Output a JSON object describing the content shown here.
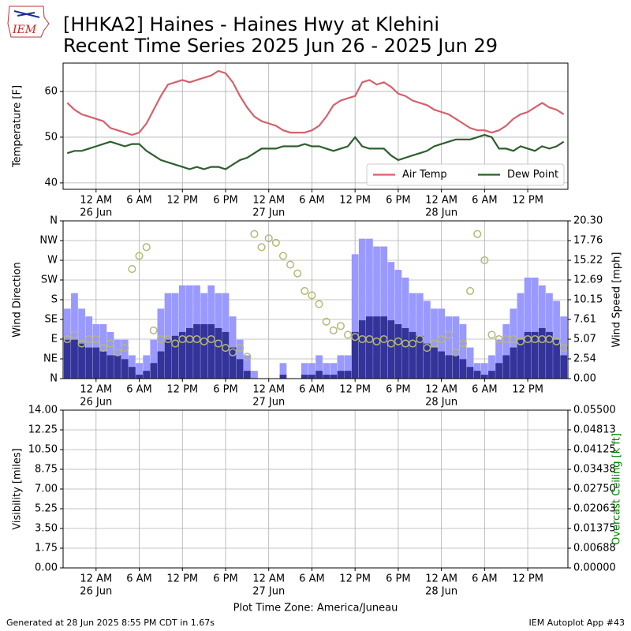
{
  "title_lines": [
    "[HHKA2] Haines - Haines Hwy at Klehini",
    "Recent Time Series 2025 Jun 26 - 2025 Jun 29"
  ],
  "logo": "IEM",
  "footer_left": "Generated at 28 Jun 2025 8:55 PM CDT in 1.67s",
  "footer_right": "IEM Autoplot App #43",
  "chart_data": [
    {
      "type": "line",
      "ylabel": "Temperature [F]",
      "legend": "lower right",
      "grid": true,
      "xlim": [
        "2025-06-25 19:25",
        "2025-06-28 17:35"
      ],
      "xticks": [
        {
          "value": "2025-06-26 00:00",
          "label": "12 AM"
        },
        {
          "value": "2025-06-26 06:00",
          "label": "6 AM"
        },
        {
          "value": "2025-06-26 12:00",
          "label": "12 PM"
        },
        {
          "value": "2025-06-26 18:00",
          "label": "6 PM"
        },
        {
          "value": "2025-06-27 00:00",
          "label": "12 AM"
        },
        {
          "value": "2025-06-27 06:00",
          "label": "6 AM"
        },
        {
          "value": "2025-06-27 12:00",
          "label": "12 PM"
        },
        {
          "value": "2025-06-27 18:00",
          "label": "6 PM"
        },
        {
          "value": "2025-06-28 00:00",
          "label": "12 AM"
        },
        {
          "value": "2025-06-28 06:00",
          "label": "6 AM"
        },
        {
          "value": "2025-06-28 12:00",
          "label": "12 PM"
        }
      ],
      "xtick_dates": [
        {
          "value": "2025-06-26 00:00",
          "label": "26 Jun"
        },
        {
          "value": "2025-06-27 00:00",
          "label": "27 Jun"
        },
        {
          "value": "2025-06-28 00:00",
          "label": "28 Jun"
        }
      ],
      "ylim": [
        38.6,
        66.2
      ],
      "yticks": [
        40,
        50,
        60
      ],
      "x": [
        "2025-06-25 20:00",
        "2025-06-25 21:00",
        "2025-06-25 22:00",
        "2025-06-25 23:00",
        "2025-06-26 00:00",
        "2025-06-26 01:00",
        "2025-06-26 02:00",
        "2025-06-26 03:00",
        "2025-06-26 04:00",
        "2025-06-26 05:00",
        "2025-06-26 06:00",
        "2025-06-26 07:00",
        "2025-06-26 08:00",
        "2025-06-26 09:00",
        "2025-06-26 10:00",
        "2025-06-26 11:00",
        "2025-06-26 12:00",
        "2025-06-26 13:00",
        "2025-06-26 14:00",
        "2025-06-26 15:00",
        "2025-06-26 16:00",
        "2025-06-26 17:00",
        "2025-06-26 18:00",
        "2025-06-26 19:00",
        "2025-06-26 20:00",
        "2025-06-26 21:00",
        "2025-06-26 22:00",
        "2025-06-26 23:00",
        "2025-06-27 00:00",
        "2025-06-27 01:00",
        "2025-06-27 02:00",
        "2025-06-27 03:00",
        "2025-06-27 04:00",
        "2025-06-27 05:00",
        "2025-06-27 06:00",
        "2025-06-27 07:00",
        "2025-06-27 08:00",
        "2025-06-27 09:00",
        "2025-06-27 10:00",
        "2025-06-27 11:00",
        "2025-06-27 12:00",
        "2025-06-27 13:00",
        "2025-06-27 14:00",
        "2025-06-27 15:00",
        "2025-06-27 16:00",
        "2025-06-27 17:00",
        "2025-06-27 18:00",
        "2025-06-27 19:00",
        "2025-06-27 20:00",
        "2025-06-27 21:00",
        "2025-06-27 22:00",
        "2025-06-27 23:00",
        "2025-06-28 00:00",
        "2025-06-28 01:00",
        "2025-06-28 02:00",
        "2025-06-28 03:00",
        "2025-06-28 04:00",
        "2025-06-28 05:00",
        "2025-06-28 06:00",
        "2025-06-28 07:00",
        "2025-06-28 08:00",
        "2025-06-28 09:00",
        "2025-06-28 10:00",
        "2025-06-28 11:00",
        "2025-06-28 12:00",
        "2025-06-28 13:00",
        "2025-06-28 14:00",
        "2025-06-28 15:00",
        "2025-06-28 16:00",
        "2025-06-28 17:00"
      ],
      "series": [
        {
          "name": "Air Temp",
          "type": "line",
          "color": "#d6606d",
          "values": [
            57.5,
            56,
            55,
            54.5,
            54,
            53.5,
            52,
            51.5,
            51,
            50.5,
            51,
            53,
            56,
            59,
            61.5,
            62,
            62.5,
            62,
            62.5,
            63,
            63.5,
            64.5,
            64,
            62,
            59,
            56.5,
            54.5,
            53.5,
            53,
            52.5,
            51.5,
            51,
            51,
            51,
            51.5,
            52.5,
            54.5,
            57,
            58,
            58.5,
            59,
            62,
            62.5,
            61.5,
            62,
            61,
            59.5,
            59,
            58,
            57.5,
            57,
            56,
            55.5,
            55,
            54,
            53,
            52,
            51.5,
            51.5,
            51,
            51.5,
            52.5,
            54,
            55,
            55.5,
            56.5,
            57.5,
            56.5,
            56,
            55
          ]
        },
        {
          "name": "Dew Point",
          "type": "line",
          "color": "#2e5e2e",
          "values": [
            46.5,
            47,
            47,
            47.5,
            48,
            48.5,
            49,
            48.5,
            48,
            48.5,
            48.5,
            47,
            46,
            45,
            44.5,
            44,
            43.5,
            43,
            43.5,
            43,
            43.5,
            43.5,
            43,
            44,
            45,
            45.5,
            46.5,
            47.5,
            47.5,
            47.5,
            48,
            48,
            48,
            48.5,
            48,
            48,
            47.5,
            47,
            47.5,
            48,
            50,
            48,
            47.5,
            47.5,
            47.5,
            46,
            45,
            45.5,
            46,
            46.5,
            47,
            48,
            48.5,
            49,
            49.5,
            49.5,
            49.5,
            50,
            50.5,
            50,
            47.5,
            47.5,
            47,
            48,
            47.5,
            47,
            48,
            47.5,
            48,
            49
          ]
        }
      ]
    },
    {
      "type": "bar",
      "ylabel": "Wind Direction",
      "y2label": "Wind Speed [mph]",
      "grid": true,
      "xlim": [
        "2025-06-25 19:25",
        "2025-06-28 17:35"
      ],
      "xticks": [
        {
          "value": "2025-06-26 00:00",
          "label": "12 AM"
        },
        {
          "value": "2025-06-26 06:00",
          "label": "6 AM"
        },
        {
          "value": "2025-06-26 12:00",
          "label": "12 PM"
        },
        {
          "value": "2025-06-26 18:00",
          "label": "6 PM"
        },
        {
          "value": "2025-06-27 00:00",
          "label": "12 AM"
        },
        {
          "value": "2025-06-27 06:00",
          "label": "6 AM"
        },
        {
          "value": "2025-06-27 12:00",
          "label": "12 PM"
        },
        {
          "value": "2025-06-27 18:00",
          "label": "6 PM"
        },
        {
          "value": "2025-06-28 00:00",
          "label": "12 AM"
        },
        {
          "value": "2025-06-28 06:00",
          "label": "6 AM"
        },
        {
          "value": "2025-06-28 12:00",
          "label": "12 PM"
        }
      ],
      "xtick_dates": [
        {
          "value": "2025-06-26 00:00",
          "label": "26 Jun"
        },
        {
          "value": "2025-06-27 00:00",
          "label": "27 Jun"
        },
        {
          "value": "2025-06-28 00:00",
          "label": "28 Jun"
        }
      ],
      "ylim": [
        0,
        360
      ],
      "yticks": [
        {
          "value": 0,
          "label": "N"
        },
        {
          "value": 45,
          "label": "NE"
        },
        {
          "value": 90,
          "label": "E"
        },
        {
          "value": 135,
          "label": "SE"
        },
        {
          "value": 180,
          "label": "S"
        },
        {
          "value": 225,
          "label": "SW"
        },
        {
          "value": 270,
          "label": "W"
        },
        {
          "value": 315,
          "label": "NW"
        },
        {
          "value": 360,
          "label": "N"
        }
      ],
      "y2lim": [
        0,
        20.3
      ],
      "y2ticks": [
        {
          "value": 0,
          "label": "0.00"
        },
        2.54,
        5.07,
        7.61,
        10.15,
        12.69,
        15.22,
        17.76,
        {
          "value": 20.3,
          "label": "20.30"
        }
      ],
      "x": [
        "2025-06-25 20:00",
        "2025-06-25 21:00",
        "2025-06-25 22:00",
        "2025-06-25 23:00",
        "2025-06-26 00:00",
        "2025-06-26 01:00",
        "2025-06-26 02:00",
        "2025-06-26 03:00",
        "2025-06-26 04:00",
        "2025-06-26 05:00",
        "2025-06-26 06:00",
        "2025-06-26 07:00",
        "2025-06-26 08:00",
        "2025-06-26 09:00",
        "2025-06-26 10:00",
        "2025-06-26 11:00",
        "2025-06-26 12:00",
        "2025-06-26 13:00",
        "2025-06-26 14:00",
        "2025-06-26 15:00",
        "2025-06-26 16:00",
        "2025-06-26 17:00",
        "2025-06-26 18:00",
        "2025-06-26 19:00",
        "2025-06-26 20:00",
        "2025-06-26 21:00",
        "2025-06-26 22:00",
        "2025-06-26 23:00",
        "2025-06-27 00:00",
        "2025-06-27 01:00",
        "2025-06-27 02:00",
        "2025-06-27 03:00",
        "2025-06-27 04:00",
        "2025-06-27 05:00",
        "2025-06-27 06:00",
        "2025-06-27 07:00",
        "2025-06-27 08:00",
        "2025-06-27 09:00",
        "2025-06-27 10:00",
        "2025-06-27 11:00",
        "2025-06-27 12:00",
        "2025-06-27 13:00",
        "2025-06-27 14:00",
        "2025-06-27 15:00",
        "2025-06-27 16:00",
        "2025-06-27 17:00",
        "2025-06-27 18:00",
        "2025-06-27 19:00",
        "2025-06-27 20:00",
        "2025-06-27 21:00",
        "2025-06-27 22:00",
        "2025-06-27 23:00",
        "2025-06-28 00:00",
        "2025-06-28 01:00",
        "2025-06-28 02:00",
        "2025-06-28 03:00",
        "2025-06-28 04:00",
        "2025-06-28 05:00",
        "2025-06-28 06:00",
        "2025-06-28 07:00",
        "2025-06-28 08:00",
        "2025-06-28 09:00",
        "2025-06-28 10:00",
        "2025-06-28 11:00",
        "2025-06-28 12:00",
        "2025-06-28 13:00",
        "2025-06-28 14:00",
        "2025-06-28 15:00",
        "2025-06-28 16:00",
        "2025-06-28 17:00"
      ],
      "series": [
        {
          "type": "bar",
          "axis": "y2",
          "color": "#9999ff",
          "values": [
            9,
            11,
            9,
            8,
            7,
            7,
            6,
            5,
            5,
            3,
            2,
            3,
            5,
            9,
            11,
            11,
            12,
            12,
            12,
            11,
            12,
            11,
            11,
            8,
            5,
            3,
            1,
            0,
            0,
            0,
            2,
            0,
            0,
            2,
            2,
            3,
            2,
            2,
            3,
            3,
            16,
            18,
            18,
            17,
            17,
            15,
            14,
            13,
            11,
            11,
            10,
            9,
            9,
            8,
            8,
            7,
            4,
            2,
            2,
            3,
            5,
            7,
            9,
            11,
            13,
            13,
            12,
            11,
            10,
            8
          ]
        },
        {
          "type": "bar",
          "axis": "y2",
          "color": "#333399",
          "values": [
            5,
            5,
            4.5,
            4,
            4,
            3.5,
            3,
            3,
            2.5,
            1.5,
            0.5,
            1,
            2,
            3.5,
            5,
            5.5,
            6,
            6.5,
            7,
            7,
            7,
            6.5,
            6,
            4,
            2.5,
            1,
            0,
            0,
            0,
            0,
            0.5,
            0,
            0,
            0.5,
            0.5,
            1,
            0.5,
            0.5,
            1,
            1,
            6,
            7.5,
            8,
            8,
            8,
            7.5,
            7,
            6.5,
            6,
            5.5,
            4.5,
            4,
            3.5,
            3,
            3,
            2.5,
            1.5,
            1,
            0.5,
            1,
            2,
            3,
            4,
            5,
            6,
            6,
            6.5,
            6,
            5,
            3
          ]
        },
        {
          "type": "scatter",
          "color": "#b5b878",
          "values": [
            90,
            100,
            80,
            90,
            90,
            70,
            80,
            60,
            70,
            250,
            280,
            300,
            110,
            90,
            90,
            80,
            90,
            90,
            90,
            85,
            90,
            80,
            70,
            60,
            70,
            50,
            330,
            300,
            320,
            310,
            280,
            260,
            240,
            200,
            190,
            170,
            130,
            110,
            120,
            100,
            95,
            90,
            90,
            85,
            90,
            80,
            85,
            80,
            80,
            90,
            70,
            80,
            90,
            100,
            60,
            80,
            200,
            330,
            270,
            100,
            90,
            90,
            90,
            85,
            90,
            90,
            90,
            90,
            85,
            70
          ]
        }
      ]
    },
    {
      "type": "line",
      "ylabel": "Visibility [miles]",
      "y2label": "Overcast Ceiling [k ft]",
      "xlabel": "Plot Time Zone: America/Juneau",
      "grid": true,
      "xlim": [
        "2025-06-25 19:25",
        "2025-06-28 17:35"
      ],
      "xticks": [
        {
          "value": "2025-06-26 00:00",
          "label": "12 AM"
        },
        {
          "value": "2025-06-26 06:00",
          "label": "6 AM"
        },
        {
          "value": "2025-06-26 12:00",
          "label": "12 PM"
        },
        {
          "value": "2025-06-26 18:00",
          "label": "6 PM"
        },
        {
          "value": "2025-06-27 00:00",
          "label": "12 AM"
        },
        {
          "value": "2025-06-27 06:00",
          "label": "6 AM"
        },
        {
          "value": "2025-06-27 12:00",
          "label": "12 PM"
        },
        {
          "value": "2025-06-27 18:00",
          "label": "6 PM"
        },
        {
          "value": "2025-06-28 00:00",
          "label": "12 AM"
        },
        {
          "value": "2025-06-28 06:00",
          "label": "6 AM"
        },
        {
          "value": "2025-06-28 12:00",
          "label": "12 PM"
        }
      ],
      "xtick_dates": [
        {
          "value": "2025-06-26 00:00",
          "label": "26 Jun"
        },
        {
          "value": "2025-06-27 00:00",
          "label": "27 Jun"
        },
        {
          "value": "2025-06-28 00:00",
          "label": "28 Jun"
        }
      ],
      "ylim": [
        0,
        14
      ],
      "yticks": [
        {
          "value": 0,
          "label": "0.00"
        },
        1.75,
        {
          "value": 3.5,
          "label": "3.50"
        },
        5.25,
        {
          "value": 7,
          "label": "7.00"
        },
        8.75,
        {
          "value": 10.5,
          "label": "10.50"
        },
        12.25,
        {
          "value": 14,
          "label": "14.00"
        }
      ],
      "y2lim": [
        0,
        0.055
      ],
      "y2ticks": [
        {
          "value": 0,
          "label": "0.00000"
        },
        {
          "value": 0.006875,
          "label": "0.00688"
        },
        {
          "value": 0.01375,
          "label": "0.01375"
        },
        {
          "value": 0.020625,
          "label": "0.02063"
        },
        {
          "value": 0.0275,
          "label": "0.02750"
        },
        {
          "value": 0.034375,
          "label": "0.03438"
        },
        {
          "value": 0.04125,
          "label": "0.04125"
        },
        {
          "value": 0.048125,
          "label": "0.04813"
        },
        {
          "value": 0.055,
          "label": "0.05500"
        }
      ],
      "series": []
    }
  ]
}
